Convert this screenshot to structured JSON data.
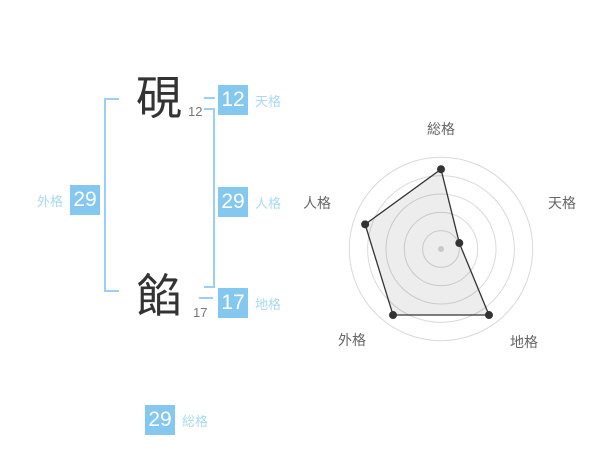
{
  "page": {
    "background": "#ffffff"
  },
  "name_analysis": {
    "surname": {
      "char": "硯",
      "strokes": "12"
    },
    "given_name": {
      "char": "餡",
      "strokes": "17"
    },
    "scores": {
      "tenkaku": {
        "value": "12",
        "label": "天格"
      },
      "jinkaku": {
        "value": "29",
        "label": "人格"
      },
      "chikaku": {
        "value": "17",
        "label": "地格"
      },
      "gaikaku": {
        "value": "29",
        "label": "外格"
      },
      "soukaku": {
        "value": "29",
        "label": "総格"
      }
    }
  },
  "colors": {
    "score_box": "#84C8F0",
    "score_label": "#A9D9F6",
    "bracket_line": "#9CCFF3",
    "kanji": "#333333",
    "stroke_count": "#777777",
    "radar_ring": "#D9D9D9",
    "radar_polygon": "#333333",
    "radar_fill": "rgba(0,0,0,0.07)",
    "radar_label": "#666666",
    "radar_center_dot": "#C9C9C9"
  },
  "chart_data": {
    "type": "radar",
    "title": "",
    "categories": [
      "総格",
      "天格",
      "地格",
      "外格",
      "人格"
    ],
    "values": [
      0.87,
      0.21,
      0.89,
      0.89,
      0.87
    ],
    "value_max": 1,
    "rings": 5,
    "grid_shape": "circular",
    "axis_order": "clockwise-from-top",
    "legend": false
  }
}
